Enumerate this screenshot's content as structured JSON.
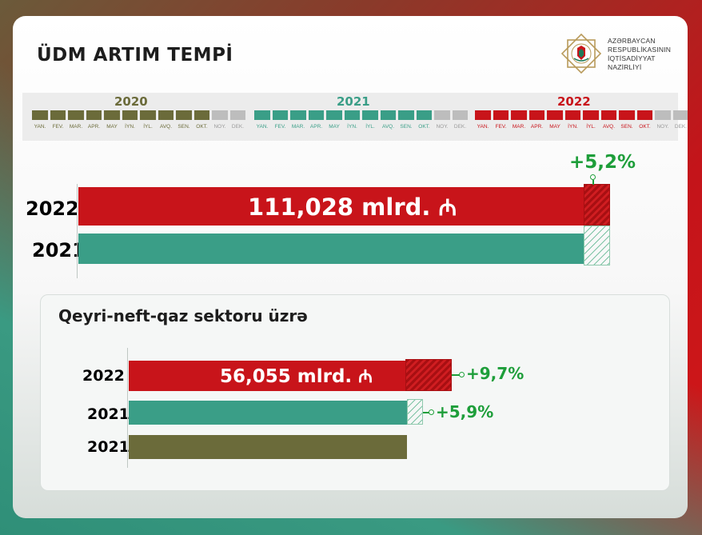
{
  "header": {
    "title": "ÜDM ARTIM TEMPİ",
    "ministry_lines": [
      "AZƏRBAYCAN",
      "RESPUBLİKASININ",
      "İQTİSADİYYAT",
      "NAZİRLİYİ"
    ]
  },
  "timeline": {
    "months": [
      "YAN.",
      "FEV.",
      "MAR.",
      "APR.",
      "MAY",
      "İYN.",
      "İYL.",
      "AVQ.",
      "SEN.",
      "OKT.",
      "NOY.",
      "DEK."
    ],
    "active_months": 10,
    "years": [
      {
        "label": "2020",
        "color": "#6b6b3a"
      },
      {
        "label": "2021",
        "color": "#3a9e87"
      },
      {
        "label": "2022",
        "color": "#c8141a"
      }
    ],
    "inactive_color": "#bdbdbd"
  },
  "colors": {
    "red": "#c8141a",
    "teal": "#3a9e87",
    "olive": "#6b6b3a",
    "green_text": "#1e9e3a"
  },
  "chart_data": [
    {
      "type": "bar",
      "orientation": "horizontal",
      "categories": [
        "2022",
        "2021"
      ],
      "values": [
        111.028,
        105.5
      ],
      "growth_label": "+5,2%",
      "bar_text": "111,028 mlrd.",
      "currency_symbol": "₼"
    },
    {
      "type": "bar",
      "orientation": "horizontal",
      "title": "Qeyri-neft-qaz sektoru üzrə",
      "categories": [
        "2022",
        "2021",
        "2021"
      ],
      "values": [
        56.055,
        51.1,
        48.3
      ],
      "growth_labels": [
        "+9,7%",
        "+5,9%",
        ""
      ],
      "bar_text": "56,055 mlrd.",
      "currency_symbol": "₼"
    }
  ]
}
